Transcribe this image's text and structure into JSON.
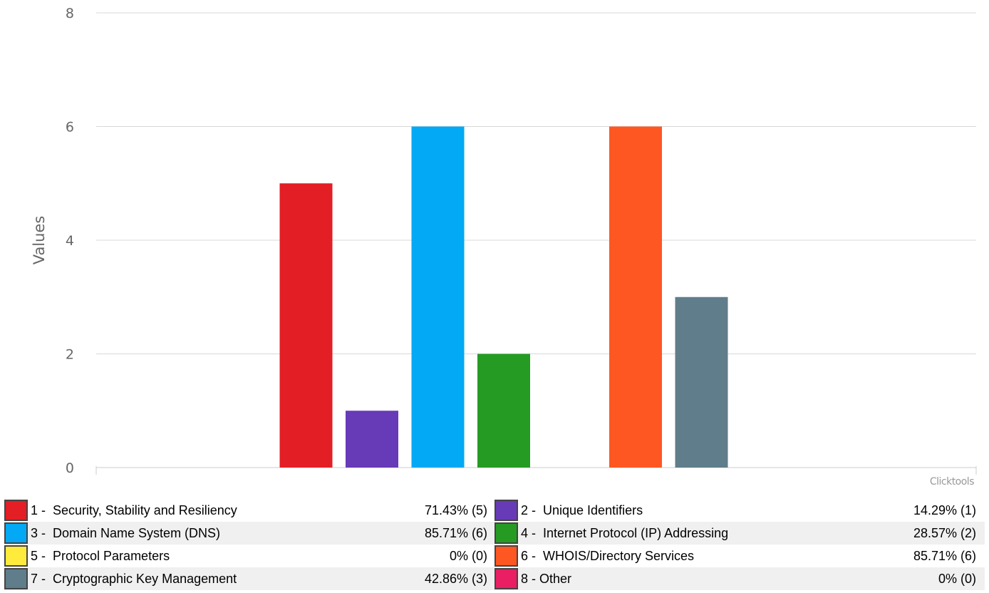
{
  "chart_data": {
    "type": "bar",
    "categories": [
      "1",
      "2",
      "3",
      "4",
      "5",
      "6",
      "7",
      "8"
    ],
    "values": [
      5,
      1,
      6,
      2,
      0,
      6,
      3,
      0
    ],
    "colors": [
      "#e31e24",
      "#673ab7",
      "#03a9f4",
      "#259b24",
      "#ffeb3b",
      "#ff5722",
      "#607d8b",
      "#e91e63"
    ],
    "ylabel": "Values",
    "ylim": [
      0,
      8
    ],
    "yticks": [
      0,
      2,
      4,
      6,
      8
    ],
    "grid": true,
    "credit": "Clicktools",
    "legend": [
      {
        "label": "1 -  Security, Stability and Resiliency",
        "value": "71.43% (5)"
      },
      {
        "label": "2 -  Unique Identifiers",
        "value": "14.29% (1)"
      },
      {
        "label": "3 -  Domain Name System (DNS)",
        "value": "85.71% (6)"
      },
      {
        "label": "4 -  Internet Protocol (IP) Addressing",
        "value": "28.57% (2)"
      },
      {
        "label": "5 -  Protocol Parameters",
        "value": "0% (0)"
      },
      {
        "label": "6 -  WHOIS/Directory Services",
        "value": "85.71% (6)"
      },
      {
        "label": "7 -  Cryptographic Key Management",
        "value": "42.86% (3)"
      },
      {
        "label": "8 - Other",
        "value": "0% (0)"
      }
    ]
  }
}
